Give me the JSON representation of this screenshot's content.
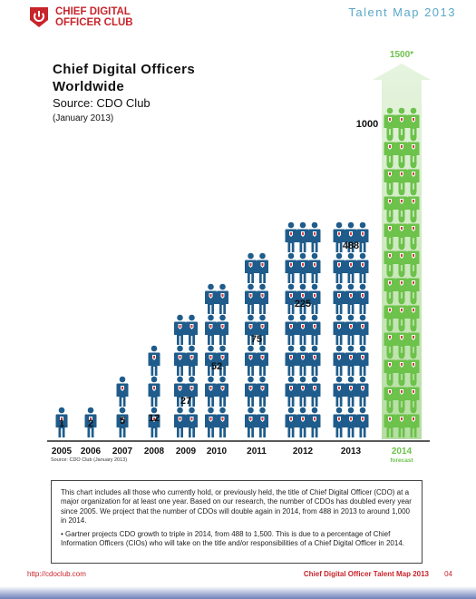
{
  "header": {
    "logo_line1": "CHIEF DIGITAL",
    "logo_line2": "OFFICER CLUB",
    "title": "Talent Map 2013",
    "brand_color": "#c8242b",
    "header_color": "#5aa7c8"
  },
  "chart_data": {
    "type": "bar",
    "title": "Chief Digital Officers Worldwide",
    "subtitle": "Source: CDO Club",
    "date": "(January 2013)",
    "categories": [
      "2005",
      "2006",
      "2007",
      "2008",
      "2009",
      "2010",
      "2011",
      "2012",
      "2013",
      "2014"
    ],
    "values": [
      1,
      2,
      5,
      12,
      27,
      52,
      75,
      225,
      488,
      1000
    ],
    "value_labels": [
      "1",
      "2",
      "5",
      "12",
      "27",
      "52",
      "75",
      "225",
      "488",
      "1000"
    ],
    "forecast": {
      "category": "2014",
      "label": "forecast",
      "value": 1500,
      "value_label": "1500*",
      "color": "#6cc24a"
    },
    "series": [
      {
        "values": [
          1,
          2,
          5,
          12,
          27,
          52,
          75,
          225,
          488,
          1000
        ]
      }
    ],
    "series_color": "#1f5c8b",
    "icon": "person-icon",
    "source_note": "Source: CDO Club (January 2013)",
    "xlabel": "",
    "ylabel": ""
  },
  "info": {
    "paragraph": "This chart includes all those who currently hold, or previously held, the title of Chief Digital Officer (CDO) at a major organization for at least one year. Based on our research, the number of CDOs has doubled every year since 2005. We project that the number of CDOs will double again in 2014, from 488 in 2013 to around 1,000 in 2014.",
    "bullet": "• Gartner projects CDO growth to triple in 2014, from 488 to 1,500. This is due to a percentage of Chief Information Officers (CIOs) who will take on the title and/or responsibilities of a Chief Digital Officer in 2014."
  },
  "footer": {
    "url": "http://cdoclub.com",
    "title": "Chief Digital Officer Talent Map 2013",
    "page": "04"
  }
}
